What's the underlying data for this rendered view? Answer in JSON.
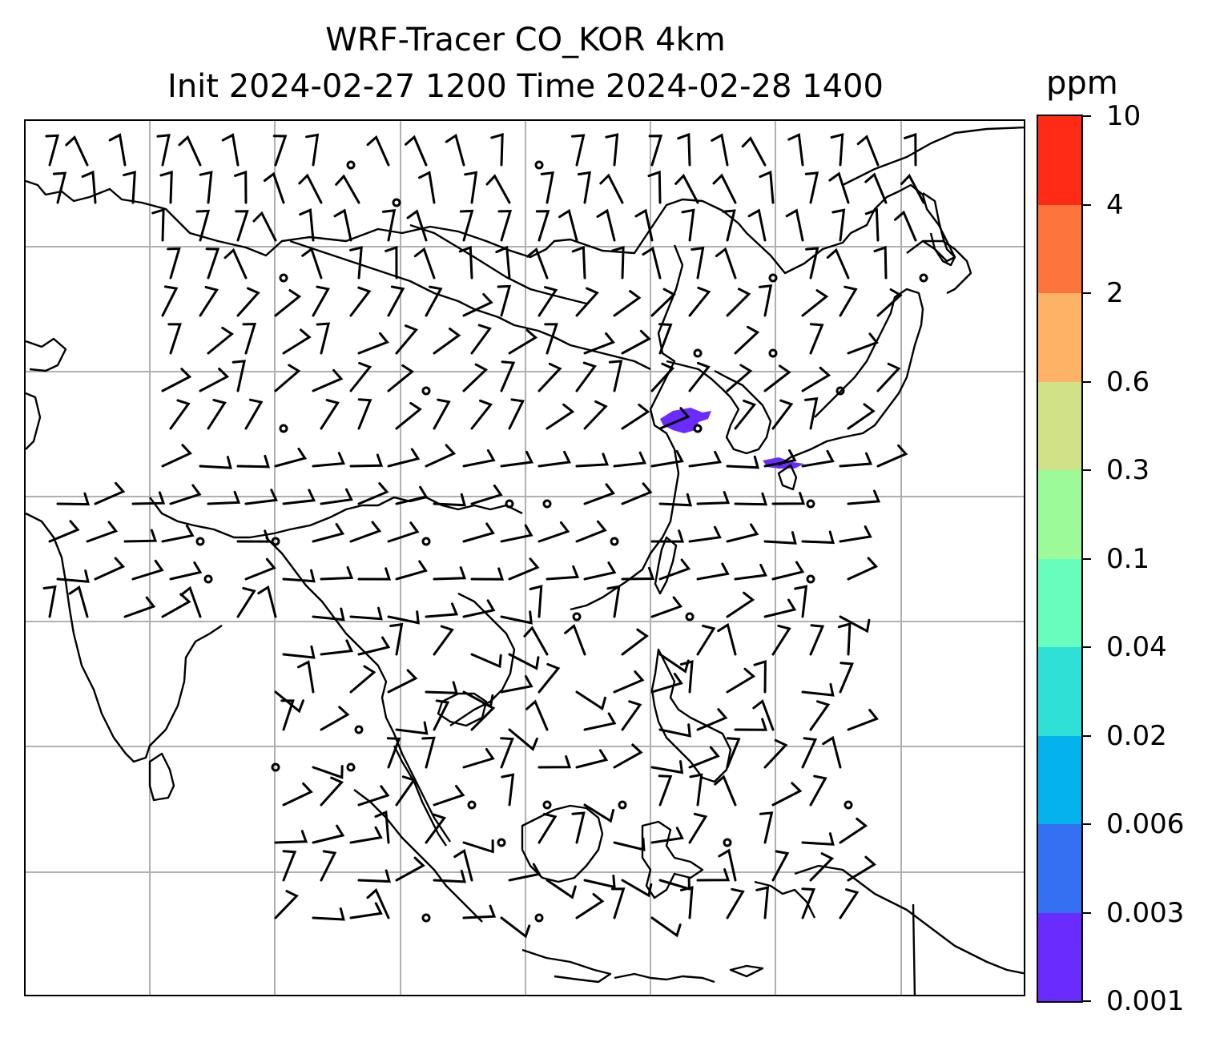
{
  "title": {
    "line1": "WRF-Tracer CO_KOR 4km",
    "line2": "Init 2024-02-27 1200 Time 2024-02-28 1400"
  },
  "colorbar": {
    "units": "ppm",
    "levels": [
      "0.001",
      "0.003",
      "0.006",
      "0.02",
      "0.04",
      "0.1",
      "0.3",
      "0.6",
      "2",
      "4",
      "10"
    ],
    "colors": [
      "#6a2bff",
      "#3371f2",
      "#03b2ec",
      "#2fe0d6",
      "#68fcbd",
      "#9cfa99",
      "#d1e187",
      "#feb265",
      "#fd743d",
      "#ff2b16"
    ]
  },
  "map": {
    "gridlines": true,
    "coastline_color": "#000000",
    "grid_color": "#b0b0b0",
    "plume_color": "#6a2bff"
  }
}
